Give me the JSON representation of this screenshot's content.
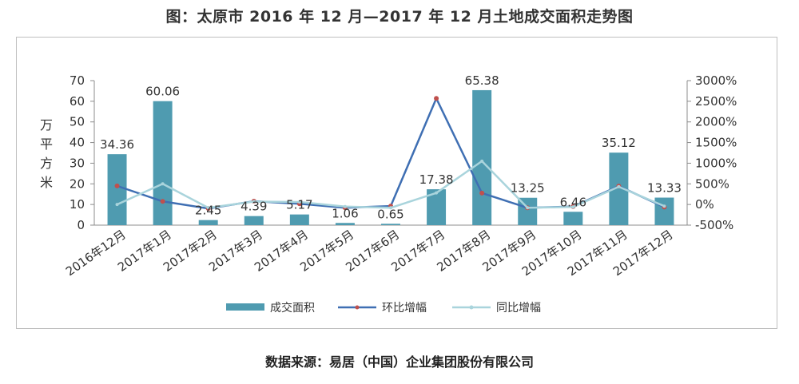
{
  "title": "图：太原市 2016 年 12 月—2017 年 12 月土地成交面积走势图",
  "source": "数据来源：易居（中国）企业集团股份有限公司",
  "chart_data": {
    "type": "bar",
    "categories": [
      "2016年12月",
      "2017年1月",
      "2017年2月",
      "2017年3月",
      "2017年4月",
      "2017年5月",
      "2017年6月",
      "2017年7月",
      "2017年8月",
      "2017年9月",
      "2017年10月",
      "2017年11月",
      "2017年12月"
    ],
    "ylabel": "万平方米",
    "ylim": [
      0,
      70
    ],
    "yticks": [
      "0",
      "10",
      "20",
      "30",
      "40",
      "50",
      "60",
      "70"
    ],
    "y2lim": [
      -500,
      3000
    ],
    "y2ticks": [
      "-500%",
      "0%",
      "500%",
      "1000%",
      "1500%",
      "2000%",
      "2500%",
      "3000%"
    ],
    "legend_position": "bottom",
    "grid": false,
    "series": [
      {
        "name": "成交面积",
        "kind": "bar",
        "axis": "left",
        "color": "#4f9bb0",
        "values": [
          34.36,
          60.06,
          2.45,
          4.39,
          5.17,
          1.06,
          0.65,
          17.38,
          65.38,
          13.25,
          6.46,
          35.12,
          13.33
        ],
        "labels": [
          "34.36",
          "60.06",
          "2.45",
          "4.39",
          "5.17",
          "1.06",
          "0.65",
          "17.38",
          "65.38",
          "13.25",
          "6.46",
          "35.12",
          "13.33"
        ]
      },
      {
        "name": "环比增幅",
        "kind": "line",
        "axis": "right",
        "color": "#3f6fb3",
        "marker_color": "#c0504d",
        "values": [
          450,
          75,
          -96,
          79,
          18,
          -79,
          -39,
          2570,
          276,
          -80,
          -51,
          444,
          -62
        ]
      },
      {
        "name": "同比增幅",
        "kind": "line",
        "axis": "right",
        "color": "#a9d4dc",
        "marker_color": "#a9d4dc",
        "values": [
          0,
          500,
          -80,
          70,
          60,
          -50,
          -80,
          280,
          1050,
          -80,
          -60,
          430,
          -40
        ]
      }
    ]
  }
}
